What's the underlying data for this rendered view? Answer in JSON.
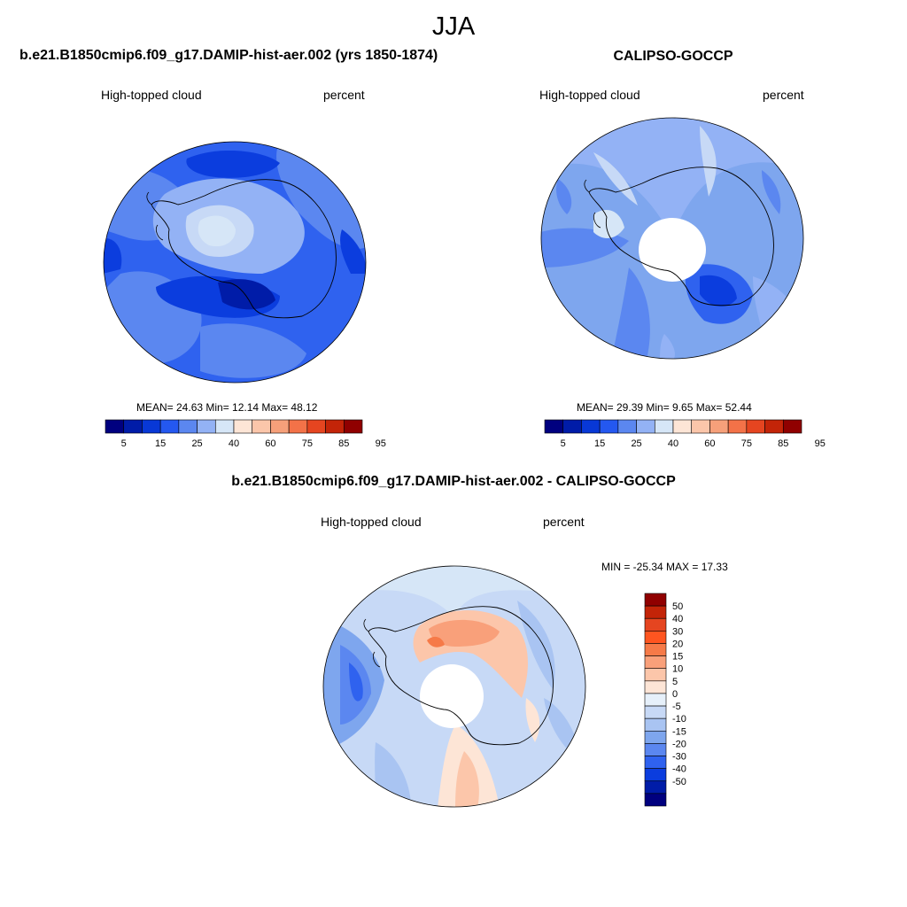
{
  "season": "JJA",
  "panels": {
    "model": {
      "title": "b.e21.B1850cmip6.f09_g17.DAMIP-hist-aer.002 (yrs 1850-1874)",
      "left_label": "High-topped cloud",
      "right_label": "percent",
      "stats": "MEAN=  24.63  Min=  12.14  Max=  48.12"
    },
    "obs": {
      "title": "CALIPSO-GOCCP",
      "left_label": "High-topped cloud",
      "right_label": "percent",
      "stats": "MEAN=  29.39  Min=   9.65  Max=  52.44"
    },
    "diff": {
      "title": "b.e21.B1850cmip6.f09_g17.DAMIP-hist-aer.002 - CALIPSO-GOCCP",
      "left_label": "High-topped cloud",
      "right_label": "percent",
      "stats": "MIN = -25.34 MAX =  17.33"
    }
  },
  "colorbar_abs": {
    "colors": [
      "#00007f",
      "#001ca8",
      "#0838d6",
      "#2458f0",
      "#5b87f0",
      "#93b2f5",
      "#d6e6f7",
      "#fde5d6",
      "#fbc6aa",
      "#f6a07a",
      "#f37248",
      "#e54520",
      "#c32408",
      "#900000"
    ],
    "tick_labels": [
      "5",
      "15",
      "25",
      "40",
      "60",
      "75",
      "85",
      "95"
    ]
  },
  "colorbar_diff": {
    "colors": [
      "#900000",
      "#c32408",
      "#e54520",
      "#ff5520",
      "#f67a48",
      "#f9a07a",
      "#fcc6aa",
      "#fde5d6",
      "#e6f0fa",
      "#c7d9f6",
      "#a9c4f2",
      "#7ea6ee",
      "#5b87f0",
      "#2f62ef",
      "#0b3dde",
      "#001ca8",
      "#00007f"
    ],
    "tick_labels": [
      "50",
      "40",
      "30",
      "20",
      "15",
      "10",
      "5",
      "0",
      "-5",
      "-10",
      "-15",
      "-20",
      "-30",
      "-40",
      "-50"
    ]
  }
}
